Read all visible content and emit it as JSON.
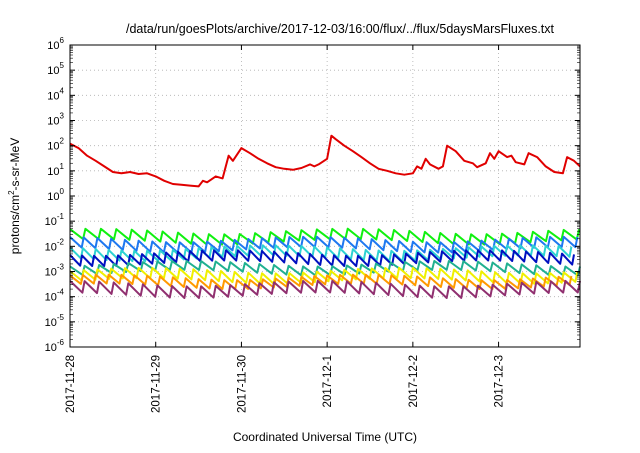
{
  "chart_data": {
    "type": "line",
    "title": "/data/run/goesPlots/archive/2017-12-03/16:00/flux/../flux/5daysMarsFluxes.txt",
    "xlabel": "Coordinated Universal Time (UTC)",
    "ylabel_main": "protons/cm",
    "ylabel_sup": "2",
    "ylabel_rest": "-s-sr-MeV",
    "y_scale": "log",
    "ylim": [
      1e-06,
      1000000.0
    ],
    "y_tick_exponents": [
      -6,
      -5,
      -4,
      -3,
      -2,
      -1,
      0,
      1,
      2,
      3,
      4,
      5,
      6
    ],
    "y_tick_base": "10",
    "xlim_days": [
      0,
      5.95
    ],
    "x_ticks": [
      "2017-11-28",
      "2017-11-29",
      "2017-11-30",
      "2017-12-1",
      "2017-12-2",
      "2017-12-3"
    ],
    "grid": true,
    "legend": "none",
    "series": [
      {
        "color": "#e00000",
        "points": [
          [
            0.0,
            120
          ],
          [
            0.1,
            80
          ],
          [
            0.2,
            40
          ],
          [
            0.3,
            25
          ],
          [
            0.4,
            15
          ],
          [
            0.5,
            9
          ],
          [
            0.6,
            8
          ],
          [
            0.7,
            9
          ],
          [
            0.8,
            7.5
          ],
          [
            0.9,
            8
          ],
          [
            1.0,
            6
          ],
          [
            1.1,
            4
          ],
          [
            1.2,
            3
          ],
          [
            1.3,
            2.8
          ],
          [
            1.4,
            2.6
          ],
          [
            1.5,
            2.4
          ],
          [
            1.55,
            4
          ],
          [
            1.6,
            3.5
          ],
          [
            1.7,
            6
          ],
          [
            1.78,
            5
          ],
          [
            1.85,
            40
          ],
          [
            1.9,
            25
          ],
          [
            2.0,
            80
          ],
          [
            2.1,
            50
          ],
          [
            2.2,
            30
          ],
          [
            2.3,
            20
          ],
          [
            2.4,
            14
          ],
          [
            2.5,
            12
          ],
          [
            2.6,
            11
          ],
          [
            2.7,
            13
          ],
          [
            2.8,
            18
          ],
          [
            2.85,
            15
          ],
          [
            2.9,
            18
          ],
          [
            3.0,
            30
          ],
          [
            3.05,
            250
          ],
          [
            3.1,
            180
          ],
          [
            3.2,
            100
          ],
          [
            3.3,
            60
          ],
          [
            3.4,
            35
          ],
          [
            3.5,
            20
          ],
          [
            3.6,
            12
          ],
          [
            3.7,
            10
          ],
          [
            3.8,
            8
          ],
          [
            3.9,
            7
          ],
          [
            4.0,
            8
          ],
          [
            4.05,
            15
          ],
          [
            4.1,
            12
          ],
          [
            4.15,
            30
          ],
          [
            4.2,
            18
          ],
          [
            4.3,
            12
          ],
          [
            4.35,
            15
          ],
          [
            4.4,
            100
          ],
          [
            4.5,
            60
          ],
          [
            4.6,
            25
          ],
          [
            4.7,
            20
          ],
          [
            4.75,
            14
          ],
          [
            4.85,
            20
          ],
          [
            4.9,
            50
          ],
          [
            4.95,
            30
          ],
          [
            5.0,
            60
          ],
          [
            5.1,
            35
          ],
          [
            5.15,
            40
          ],
          [
            5.2,
            22
          ],
          [
            5.3,
            18
          ],
          [
            5.35,
            50
          ],
          [
            5.45,
            35
          ],
          [
            5.55,
            15
          ],
          [
            5.65,
            9
          ],
          [
            5.75,
            8
          ],
          [
            5.8,
            35
          ],
          [
            5.88,
            25
          ],
          [
            5.95,
            15
          ]
        ]
      },
      {
        "color": "#10f010",
        "base": 0.025,
        "amp": 1.6,
        "period": 0.18
      },
      {
        "color": "#1e78f0",
        "base": 0.012,
        "amp": 1.6,
        "period": 0.16
      },
      {
        "color": "#2dd2d2",
        "base": 0.0055,
        "amp": 1.6,
        "period": 0.15
      },
      {
        "color": "#0010c0",
        "base": 0.0035,
        "amp": 1.6,
        "period": 0.14
      },
      {
        "color": "#20b090",
        "base": 0.0014,
        "amp": 1.5,
        "period": 0.17
      },
      {
        "color": "#f0f000",
        "base": 0.0007,
        "amp": 1.6,
        "period": 0.16
      },
      {
        "color": "#ff9900",
        "base": 0.0004,
        "amp": 1.5,
        "period": 0.15
      },
      {
        "color": "#903070",
        "base": 0.0002,
        "amp": 1.7,
        "period": 0.17
      }
    ]
  }
}
